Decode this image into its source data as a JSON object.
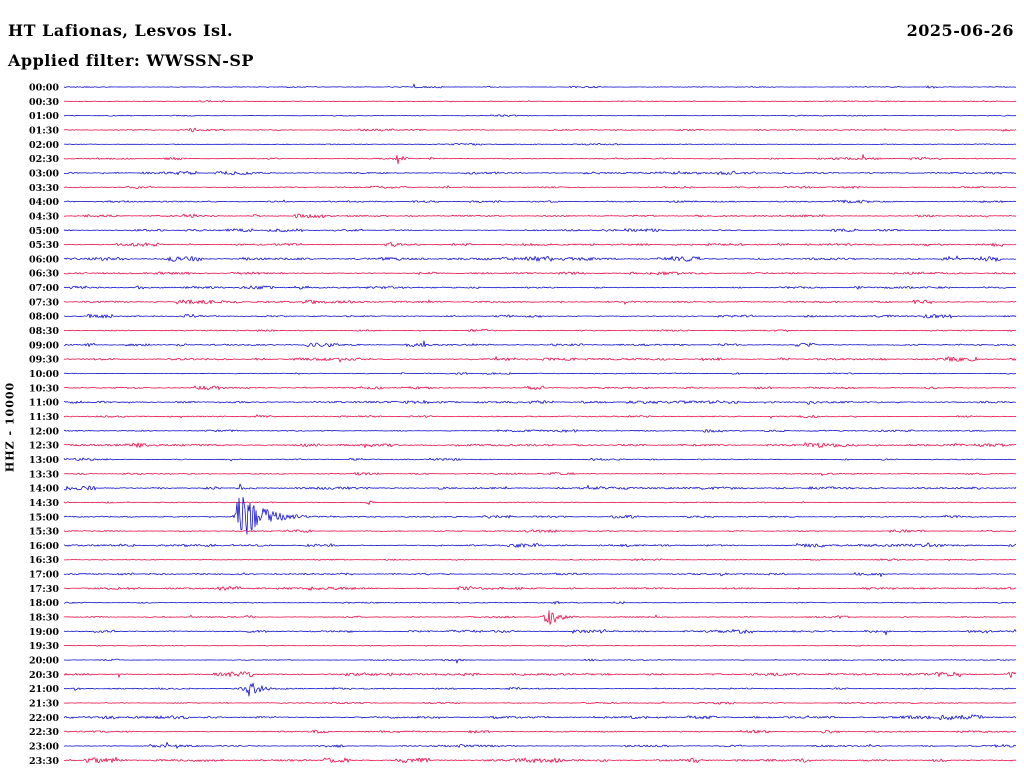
{
  "header": {
    "station_title": "HT Lafionas, Lesvos Isl.",
    "date": "2025-06-26",
    "filter_label": "Applied filter: WWSSN-SP"
  },
  "axis": {
    "ylabel": "HHZ - 10000"
  },
  "chart_data": {
    "type": "line",
    "subtype": "helicorder-seismogram",
    "title": "HT Lafionas, Lesvos Isl.",
    "date": "2025-06-26",
    "filter": "WWSSN-SP",
    "channel_scale_label": "HHZ - 10000",
    "row_interval_minutes": 30,
    "row_count": 48,
    "first_row_time": "00:00",
    "last_row_time": "23:30",
    "legend": "none",
    "grid": "off",
    "colors": {
      "hour_trace": "#1414cc",
      "half_hour_trace": "#e8124d",
      "text": "#000000",
      "background": "#ffffff"
    },
    "rows": [
      {
        "time": "00:00",
        "noise": 0.5
      },
      {
        "time": "00:30",
        "noise": 0.5
      },
      {
        "time": "01:00",
        "noise": 0.5
      },
      {
        "time": "01:30",
        "noise": 0.7
      },
      {
        "time": "02:00",
        "noise": 0.5
      },
      {
        "time": "02:30",
        "noise": 0.7
      },
      {
        "time": "03:00",
        "noise": 1.1
      },
      {
        "time": "03:30",
        "noise": 0.7
      },
      {
        "time": "04:00",
        "noise": 0.9
      },
      {
        "time": "04:30",
        "noise": 1.1
      },
      {
        "time": "05:00",
        "noise": 0.9
      },
      {
        "time": "05:30",
        "noise": 1.1
      },
      {
        "time": "06:00",
        "noise": 1.5
      },
      {
        "time": "06:30",
        "noise": 1.2
      },
      {
        "time": "07:00",
        "noise": 1.0
      },
      {
        "time": "07:30",
        "noise": 1.2
      },
      {
        "time": "08:00",
        "noise": 1.1
      },
      {
        "time": "08:30",
        "noise": 0.8
      },
      {
        "time": "09:00",
        "noise": 1.1
      },
      {
        "time": "09:30",
        "noise": 1.3
      },
      {
        "time": "10:00",
        "noise": 0.6
      },
      {
        "time": "10:30",
        "noise": 1.2
      },
      {
        "time": "11:00",
        "noise": 1.4
      },
      {
        "time": "11:30",
        "noise": 0.8
      },
      {
        "time": "12:00",
        "noise": 0.9
      },
      {
        "time": "12:30",
        "noise": 1.4
      },
      {
        "time": "13:00",
        "noise": 0.7
      },
      {
        "time": "13:30",
        "noise": 0.8
      },
      {
        "time": "14:00",
        "noise": 1.3
      },
      {
        "time": "14:30",
        "noise": 0.7
      },
      {
        "time": "15:00",
        "noise": 0.9
      },
      {
        "time": "15:30",
        "noise": 0.8
      },
      {
        "time": "16:00",
        "noise": 1.2
      },
      {
        "time": "16:30",
        "noise": 0.6
      },
      {
        "time": "17:00",
        "noise": 1.0
      },
      {
        "time": "17:30",
        "noise": 1.1
      },
      {
        "time": "18:00",
        "noise": 0.6
      },
      {
        "time": "18:30",
        "noise": 0.9
      },
      {
        "time": "19:00",
        "noise": 1.2
      },
      {
        "time": "19:30",
        "noise": 0.6
      },
      {
        "time": "20:00",
        "noise": 0.6
      },
      {
        "time": "20:30",
        "noise": 1.5
      },
      {
        "time": "21:00",
        "noise": 0.8
      },
      {
        "time": "21:30",
        "noise": 0.7
      },
      {
        "time": "22:00",
        "noise": 1.5
      },
      {
        "time": "22:30",
        "noise": 0.9
      },
      {
        "time": "23:00",
        "noise": 0.9
      },
      {
        "time": "23:30",
        "noise": 1.4
      }
    ],
    "events": [
      {
        "time": "00:00",
        "frac": 0.91,
        "amp": 3.0,
        "rise": 2,
        "decay": 5
      },
      {
        "time": "01:30",
        "frac": 0.138,
        "amp": 2.0,
        "rise": 8,
        "decay": 10
      },
      {
        "time": "02:30",
        "frac": 0.351,
        "amp": 5.0,
        "rise": 2,
        "decay": 6
      },
      {
        "time": "02:30",
        "frac": 0.387,
        "amp": 1.5,
        "rise": 3,
        "decay": 5
      },
      {
        "time": "05:30",
        "frac": 0.342,
        "amp": 2.2,
        "rise": 4,
        "decay": 8
      },
      {
        "time": "08:00",
        "frac": 0.132,
        "amp": 2.5,
        "rise": 4,
        "decay": 8
      },
      {
        "time": "11:30",
        "frac": 0.204,
        "amp": 2.0,
        "rise": 5,
        "decay": 10
      },
      {
        "time": "13:00",
        "frac": 0.027,
        "amp": 2.0,
        "rise": 4,
        "decay": 8
      },
      {
        "time": "14:00",
        "frac": 0.185,
        "amp": 5.0,
        "rise": 1.2,
        "decay": 2
      },
      {
        "time": "14:30",
        "frac": 0.321,
        "amp": 3.0,
        "rise": 2,
        "decay": 4
      },
      {
        "time": "15:00",
        "frac": 0.185,
        "amp": 25.0,
        "rise": 3,
        "decay": 22
      },
      {
        "time": "16:00",
        "frac": 0.91,
        "amp": 2.5,
        "rise": 3,
        "decay": 6
      },
      {
        "time": "17:30",
        "frac": 0.264,
        "amp": 1.8,
        "rise": 12,
        "decay": 14
      },
      {
        "time": "18:00",
        "frac": 0.516,
        "amp": 2.0,
        "rise": 2,
        "decay": 4
      },
      {
        "time": "18:30",
        "frac": 0.51,
        "amp": 9.0,
        "rise": 4,
        "decay": 10
      },
      {
        "time": "18:30",
        "frac": 0.195,
        "amp": 1.8,
        "rise": 4,
        "decay": 5
      },
      {
        "time": "20:00",
        "frac": 0.048,
        "amp": 1.5,
        "rise": 5,
        "decay": 6
      },
      {
        "time": "20:30",
        "frac": 0.996,
        "amp": 4.0,
        "rise": 3,
        "decay": 4
      },
      {
        "time": "21:00",
        "frac": 0.012,
        "amp": 3.0,
        "rise": 2,
        "decay": 4
      },
      {
        "time": "21:00",
        "frac": 0.197,
        "amp": 10.0,
        "rise": 5,
        "decay": 9
      }
    ]
  }
}
